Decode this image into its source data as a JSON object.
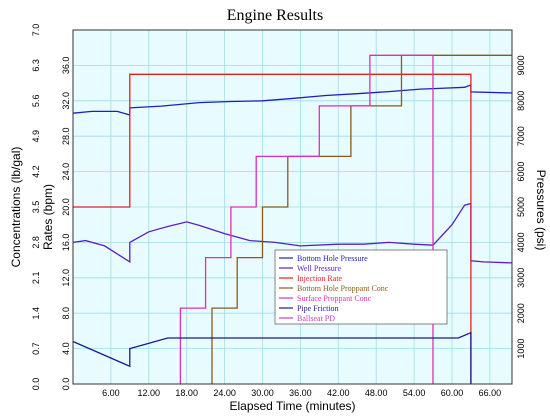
{
  "chart_data": {
    "type": "line",
    "title": "Engine Results",
    "xlabel": "Elapsed Time (minutes)",
    "y_axes": {
      "concentration": {
        "label": "Concentrations (lb/gal)",
        "range": [
          0,
          7.0
        ],
        "ticks": [
          "0.0",
          "0.7",
          "1.4",
          "2.1",
          "2.8",
          "3.5",
          "4.2",
          "4.9",
          "5.6",
          "6.3",
          "7.0"
        ]
      },
      "rate": {
        "label": "Rates (bpm)",
        "range": [
          0,
          40
        ],
        "ticks": [
          "0.0",
          "4.0",
          "8.0",
          "12.0",
          "16.0",
          "20.0",
          "24.0",
          "28.0",
          "32.0",
          "36.0"
        ]
      },
      "pressure": {
        "label": "Pressures (psi)",
        "range": [
          0,
          10000
        ],
        "ticks": [
          "1000",
          "2000",
          "3000",
          "4000",
          "5000",
          "6000",
          "7000",
          "8000",
          "9000"
        ]
      }
    },
    "x_ticks": [
      "6.00",
      "12.00",
      "18.00",
      "24.00",
      "30.00",
      "36.00",
      "42.00",
      "48.00",
      "54.00",
      "60.00",
      "66.00"
    ],
    "xlim": [
      0,
      69.5
    ],
    "grid": true,
    "legend_position": "center-right",
    "series": [
      {
        "name": "Bottom Hole Pressure",
        "axis": "pressure",
        "color": "#1f1fbf",
        "points": [
          [
            0,
            7650
          ],
          [
            3,
            7700
          ],
          [
            7,
            7700
          ],
          [
            9,
            7600
          ],
          [
            9,
            7800
          ],
          [
            14,
            7850
          ],
          [
            20,
            7950
          ],
          [
            25,
            7980
          ],
          [
            30,
            8000
          ],
          [
            35,
            8070
          ],
          [
            40,
            8150
          ],
          [
            45,
            8200
          ],
          [
            50,
            8260
          ],
          [
            55,
            8330
          ],
          [
            58,
            8350
          ],
          [
            62,
            8380
          ],
          [
            63,
            8450
          ],
          [
            63,
            8250
          ],
          [
            69.5,
            8220
          ]
        ]
      },
      {
        "name": "Well Pressure",
        "axis": "pressure",
        "color": "#5a1fbf",
        "points": [
          [
            0,
            4000
          ],
          [
            2,
            4050
          ],
          [
            5,
            3900
          ],
          [
            9,
            3450
          ],
          [
            9,
            4000
          ],
          [
            12,
            4300
          ],
          [
            15,
            4450
          ],
          [
            18,
            4580
          ],
          [
            20,
            4480
          ],
          [
            24,
            4250
          ],
          [
            28,
            4050
          ],
          [
            32,
            4000
          ],
          [
            36,
            3900
          ],
          [
            42,
            3950
          ],
          [
            46,
            3950
          ],
          [
            50,
            4000
          ],
          [
            54,
            3950
          ],
          [
            57,
            3920
          ],
          [
            60,
            4500
          ],
          [
            62,
            5050
          ],
          [
            63,
            5100
          ],
          [
            63,
            3480
          ],
          [
            65,
            3450
          ],
          [
            69.5,
            3420
          ]
        ]
      },
      {
        "name": "Injection Rate",
        "axis": "rate",
        "color": "#dd2222",
        "points": [
          [
            0,
            20
          ],
          [
            9,
            20
          ],
          [
            9,
            35
          ],
          [
            63,
            35
          ],
          [
            63,
            0
          ]
        ]
      },
      {
        "name": "Bottom Hole Proppant Cone",
        "axis": "concentration",
        "color": "#8b5a1a",
        "points": [
          [
            22,
            0
          ],
          [
            22,
            1.5
          ],
          [
            26,
            1.5
          ],
          [
            26,
            2.5
          ],
          [
            30,
            2.5
          ],
          [
            30,
            3.5
          ],
          [
            34,
            3.5
          ],
          [
            34,
            4.5
          ],
          [
            44,
            4.5
          ],
          [
            44,
            5.5
          ],
          [
            52,
            5.5
          ],
          [
            52,
            6.5
          ],
          [
            69.5,
            6.5
          ]
        ]
      },
      {
        "name": "Surface Proppant Cone",
        "axis": "concentration",
        "color": "#e030b0",
        "points": [
          [
            17,
            0
          ],
          [
            17,
            1.5
          ],
          [
            21,
            1.5
          ],
          [
            21,
            2.5
          ],
          [
            25,
            2.5
          ],
          [
            25,
            3.5
          ],
          [
            29,
            3.5
          ],
          [
            29,
            4.5
          ],
          [
            39,
            4.5
          ],
          [
            39,
            5.5
          ],
          [
            47,
            5.5
          ],
          [
            47,
            6.5
          ],
          [
            57,
            6.5
          ],
          [
            57,
            0
          ]
        ]
      },
      {
        "name": "Pipe Friction",
        "axis": "pressure",
        "color": "#1a1a90",
        "points": [
          [
            0,
            1200
          ],
          [
            9,
            500
          ],
          [
            9,
            1000
          ],
          [
            15,
            1300
          ],
          [
            61,
            1300
          ],
          [
            63,
            1450
          ],
          [
            63,
            0
          ]
        ]
      },
      {
        "name": "Ballseat PD",
        "axis": "pressure",
        "color": "#bb44bb",
        "points": []
      }
    ],
    "legend": [
      {
        "label": "Bottom Hole Pressure",
        "color": "#1f1fbf"
      },
      {
        "label": "Well Pressure",
        "color": "#5a1fbf"
      },
      {
        "label": "Injection Rate",
        "color": "#dd2222"
      },
      {
        "label": "Bottom Hole Proppant Conc",
        "color": "#8b5a1a"
      },
      {
        "label": "Surface Proppant Conc",
        "color": "#e030b0"
      },
      {
        "label": "Pipe Friction",
        "color": "#1a1a90"
      },
      {
        "label": "Ballseat PD",
        "color": "#bb44bb"
      }
    ],
    "colors": {
      "plot_background": "#e8fbff",
      "grid": "#9fdde6",
      "frame": "#333333"
    }
  }
}
